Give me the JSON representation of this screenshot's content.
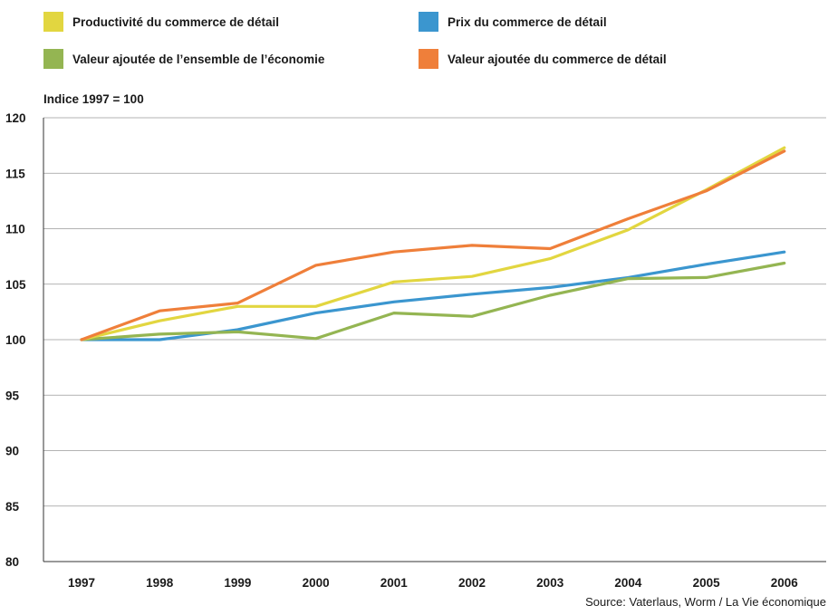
{
  "legend": [
    {
      "name": "Productivité du commerce de détail",
      "color": "#e2d640"
    },
    {
      "name": "Prix du commerce de détail",
      "color": "#3b96cf"
    },
    {
      "name": "Valeur ajoutée de l’ensemble de l’économie",
      "color": "#94b552"
    },
    {
      "name": "Valeur ajoutée du commerce de détail",
      "color": "#ef7f3a"
    }
  ],
  "unit_label": "Indice 1997 = 100",
  "source": "Source: Vaterlaus, Worm / La Vie économique",
  "chart_data": {
    "type": "line",
    "title": "",
    "xlabel": "",
    "ylabel": "Indice 1997 = 100",
    "x": [
      "1997",
      "1998",
      "1999",
      "2000",
      "2001",
      "2002",
      "2003",
      "2004",
      "2005",
      "2006"
    ],
    "ylim": [
      80,
      120
    ],
    "yticks": [
      "80",
      "85",
      "90",
      "95",
      "100",
      "105",
      "110",
      "115",
      "120"
    ],
    "grid": true,
    "legend_position": "top",
    "series": [
      {
        "name": "Productivité du commerce de détail",
        "color": "#e2d640",
        "values": [
          100,
          101.7,
          103.0,
          103.0,
          105.2,
          105.7,
          107.3,
          109.9,
          113.5,
          117.3
        ]
      },
      {
        "name": "Prix du commerce de détail",
        "color": "#3b96cf",
        "values": [
          100,
          100.0,
          100.9,
          102.4,
          103.4,
          104.1,
          104.7,
          105.6,
          106.8,
          107.9
        ]
      },
      {
        "name": "Valeur ajoutée de l’ensemble de l’économie",
        "color": "#94b552",
        "values": [
          100,
          100.5,
          100.7,
          100.1,
          102.4,
          102.1,
          104.0,
          105.5,
          105.6,
          106.9
        ]
      },
      {
        "name": "Valeur ajoutée du commerce de détail",
        "color": "#ef7f3a",
        "values": [
          100,
          102.6,
          103.3,
          106.7,
          107.9,
          108.5,
          108.2,
          110.9,
          113.4,
          117.0
        ]
      }
    ]
  }
}
